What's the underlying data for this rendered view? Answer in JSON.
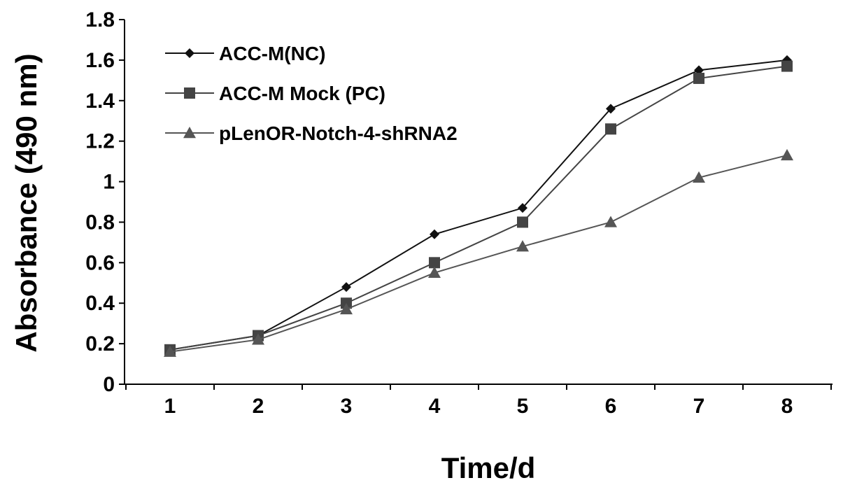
{
  "chart_data": {
    "type": "line",
    "x": [
      1,
      2,
      3,
      4,
      5,
      6,
      7,
      8
    ],
    "xlabel": "Time/d",
    "ylabel": "Absorbance (490 nm)",
    "ylim": [
      0,
      1.8
    ],
    "yticks": [
      "0",
      "0.2",
      "0.4",
      "0.6",
      "0.8",
      "1",
      "1.2",
      "1.4",
      "1.6",
      "1.8"
    ],
    "xticks": [
      "1",
      "2",
      "3",
      "4",
      "5",
      "6",
      "7",
      "8"
    ],
    "grid": false,
    "legend_position": "top-left",
    "series": [
      {
        "name": "ACC-M(NC)",
        "marker": "diamond",
        "color": "#111111",
        "values": [
          0.17,
          0.24,
          0.48,
          0.74,
          0.87,
          1.36,
          1.55,
          1.6
        ]
      },
      {
        "name": "ACC-M Mock (PC)",
        "marker": "square",
        "color": "#444444",
        "values": [
          0.17,
          0.24,
          0.4,
          0.6,
          0.8,
          1.26,
          1.51,
          1.57
        ]
      },
      {
        "name": "pLenOR-Notch-4-shRNA2",
        "marker": "triangle",
        "color": "#555555",
        "values": [
          0.16,
          0.22,
          0.37,
          0.55,
          0.68,
          0.8,
          1.02,
          1.13
        ]
      }
    ]
  }
}
